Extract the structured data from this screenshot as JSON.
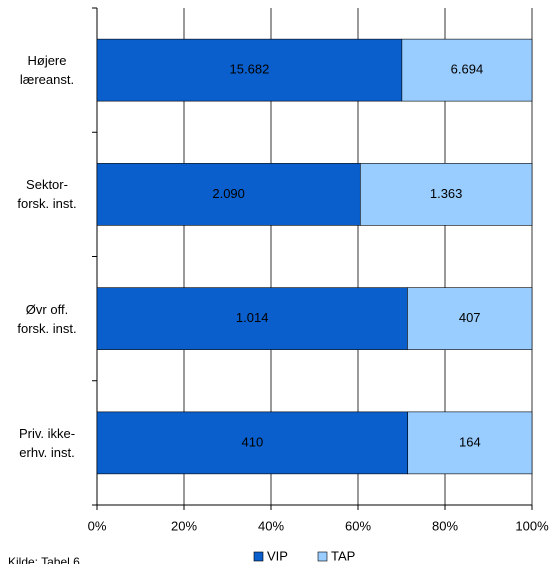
{
  "chart_data": {
    "type": "bar",
    "orientation": "horizontal",
    "stacked": "percent",
    "categories": [
      "Højere\nlæreanst.",
      "Sektor-\nforsk. inst.",
      "Øvr off.\nforsk. inst.",
      "Priv. ikke-\nerhv. inst."
    ],
    "series": [
      {
        "name": "VIP",
        "color": "#0a5fcc",
        "values": [
          15682,
          2090,
          1014,
          410
        ],
        "value_labels": [
          "15.682",
          "2.090",
          "1.014",
          "410"
        ]
      },
      {
        "name": "TAP",
        "color": "#99ccff",
        "values": [
          6694,
          1363,
          407,
          164
        ],
        "value_labels": [
          "6.694",
          "1.363",
          "407",
          "164"
        ]
      }
    ],
    "xlim": [
      0,
      100
    ],
    "xticks": [
      {
        "value": 0,
        "label": "0%"
      },
      {
        "value": 20,
        "label": "20%"
      },
      {
        "value": 40,
        "label": "40%"
      },
      {
        "value": 60,
        "label": "60%"
      },
      {
        "value": 80,
        "label": "80%"
      },
      {
        "value": 100,
        "label": "100%"
      }
    ],
    "grid": true,
    "legend": "bottom",
    "source": "Kilde: Tabel 6"
  }
}
